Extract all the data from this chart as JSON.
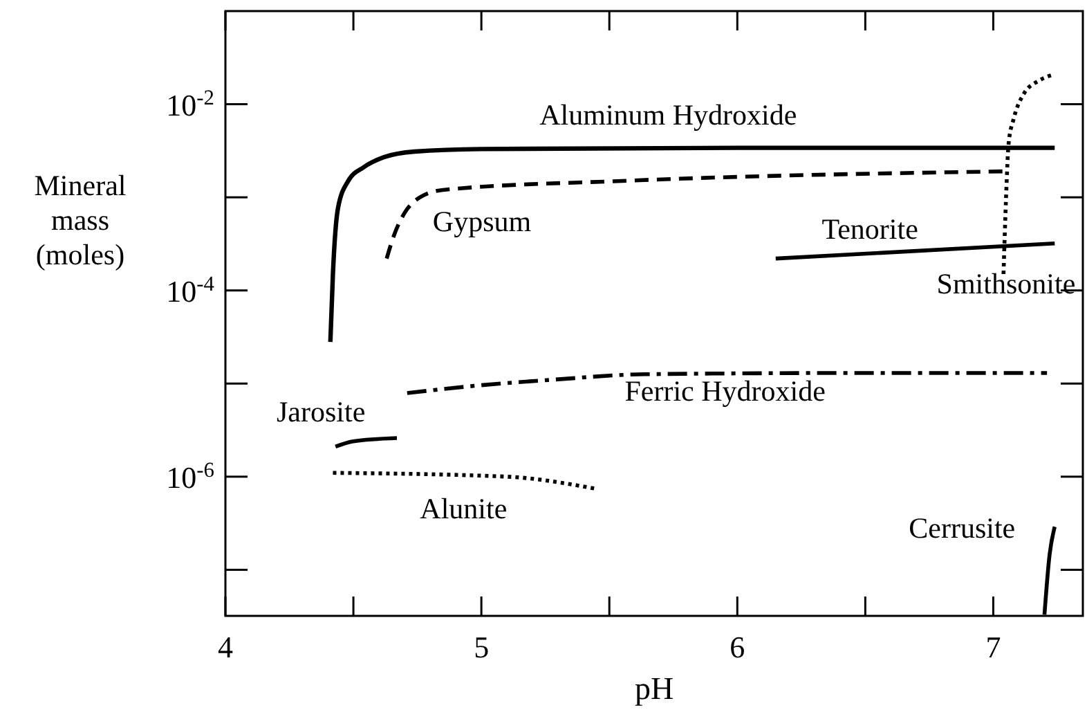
{
  "chart_data": {
    "type": "line",
    "xlabel": "pH",
    "ylabel": "Mineral\nmass\n(moles)",
    "log": "y",
    "grid": false,
    "xlim": [
      4,
      7.35
    ],
    "ylim": [
      3.2e-08,
      0.1
    ],
    "xticks": [
      4,
      {
        "value": 4.5,
        "label": null
      },
      5,
      {
        "value": 5.5,
        "label": null
      },
      6,
      {
        "value": 6.5,
        "label": null
      },
      7
    ],
    "yticks": [
      {
        "value": 1e-07,
        "label": null
      },
      {
        "value": 1e-06,
        "label": "10$^{-6}$"
      },
      {
        "value": 1e-05,
        "label": null
      },
      {
        "value": 0.0001,
        "label": "10$^{-4}$"
      },
      {
        "value": 0.001,
        "label": null
      },
      {
        "value": 0.01,
        "label": "10$^{-2}$"
      }
    ],
    "series": [
      {
        "name": "Aluminum Hydroxide",
        "color": "#000000",
        "line_style": "solid",
        "x": [
          4.41,
          4.42,
          4.44,
          4.48,
          4.54,
          4.62,
          4.74,
          5.0,
          6.0,
          7.24
        ],
        "values": [
          2.8e-05,
          0.00015,
          0.00077,
          0.0015,
          0.0021,
          0.0027,
          0.0031,
          0.0033,
          0.0034,
          0.0034
        ]
      },
      {
        "name": "Gypsum",
        "color": "#000000",
        "line_style": "dashed",
        "x": [
          4.63,
          4.66,
          4.7,
          4.76,
          4.85,
          5.55,
          7.04
        ],
        "values": [
          0.00022,
          0.0004,
          0.00068,
          0.001,
          0.0012,
          0.0015,
          0.0019
        ]
      },
      {
        "name": "Tenorite",
        "color": "#000000",
        "line_style": "solid",
        "x": [
          6.15,
          7.24
        ],
        "values": [
          0.00022,
          0.00032
        ]
      },
      {
        "name": "Smithsonite",
        "color": "#000000",
        "line_style": "dotted",
        "x": [
          7.04,
          7.05,
          7.06,
          7.08,
          7.12,
          7.18,
          7.24
        ],
        "values": [
          0.00015,
          0.001,
          0.0038,
          0.007,
          0.013,
          0.018,
          0.021
        ]
      },
      {
        "name": "Ferric Hydroxide",
        "color": "#000000",
        "line_style": "dashdot",
        "x": [
          4.71,
          5.0,
          5.28,
          5.64,
          6.5,
          7.21
        ],
        "values": [
          7.9e-06,
          9.6e-06,
          1.1e-05,
          1.26e-05,
          1.3e-05,
          1.3e-05
        ]
      },
      {
        "name": "Jarosite",
        "color": "#000000",
        "line_style": "solid",
        "x": [
          4.43,
          4.5,
          4.67
        ],
        "values": [
          2.1e-06,
          2.4e-06,
          2.6e-06
        ]
      },
      {
        "name": "Alunite",
        "color": "#000000",
        "line_style": "dotted",
        "x": [
          4.42,
          5.1,
          5.45
        ],
        "values": [
          1.1e-06,
          1e-06,
          7.4e-07
        ]
      },
      {
        "name": "Cerrusite",
        "color": "#000000",
        "line_style": "solid",
        "x": [
          7.2,
          7.22,
          7.24
        ],
        "values": [
          3.3e-08,
          1.45e-07,
          2.9e-07
        ]
      }
    ]
  }
}
